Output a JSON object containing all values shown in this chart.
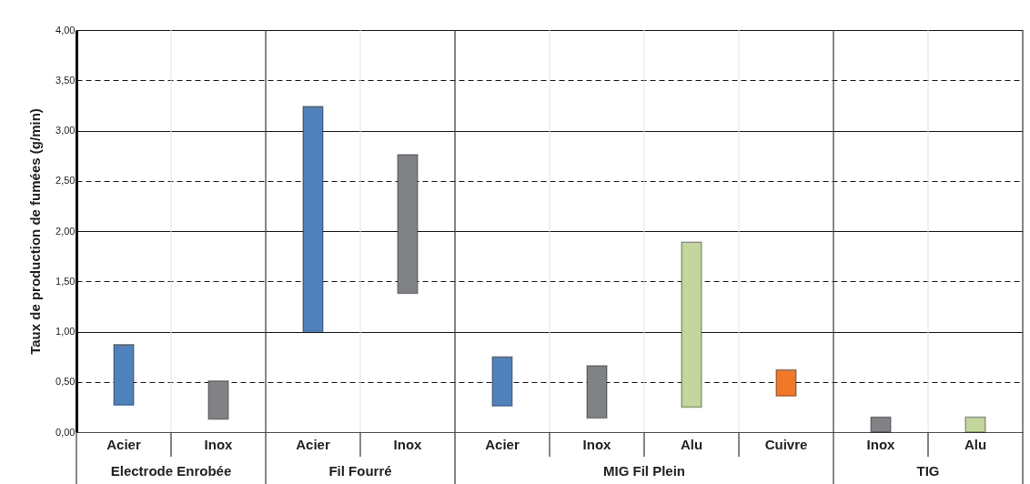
{
  "chart_data": {
    "type": "bar",
    "ylabel": "Taux de production de fumées (g/min)",
    "categories": [
      "Acier",
      "Inox",
      "Acier",
      "Inox",
      "Acier",
      "Inox",
      "Alu",
      "Cuivre",
      "Inox",
      "Alu"
    ],
    "base": [
      0.27,
      0.13,
      1.0,
      1.38,
      0.26,
      0.14,
      0.25,
      0.36,
      0,
      0
    ],
    "values": [
      0.6,
      0.38,
      2.24,
      1.38,
      0.49,
      0.52,
      1.64,
      0.26,
      0.15,
      0.15
    ],
    "colors": [
      "#4f81bd",
      "#808285",
      "#4f81bd",
      "#808285",
      "#4f81bd",
      "#808285",
      "#c3d69b",
      "#f07827",
      "#808285",
      "#c3d69b"
    ],
    "annotations": [
      "Electrode Enrobée",
      "Fil Fourré",
      "MIG Fil Plein",
      "TIG"
    ],
    "ylim": [
      0,
      4
    ],
    "yticks": [
      {
        "value": 0,
        "label": "0,00"
      },
      {
        "value": 0.5,
        "label": "0,50"
      },
      {
        "value": 1,
        "label": "1,00"
      },
      {
        "value": 1.5,
        "label": "1,50"
      },
      {
        "value": 2,
        "label": "2,00"
      },
      {
        "value": 2.5,
        "label": "2,50"
      },
      {
        "value": 3,
        "label": "3,00"
      },
      {
        "value": 3.5,
        "label": "3,50"
      },
      {
        "value": 4,
        "label": "4,00"
      }
    ],
    "grid": true
  }
}
